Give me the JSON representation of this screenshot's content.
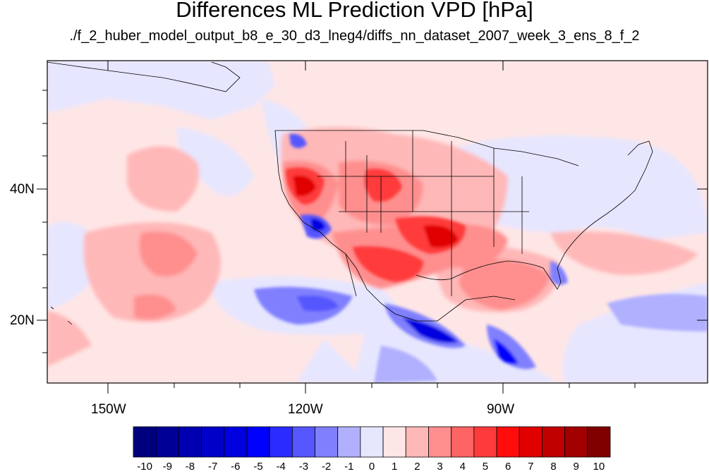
{
  "title": "Differences ML Prediction VPD [hPa]",
  "subtitle": "./f_2_huber_model_output_b8_e_30_d3_lneg4/diffs_nn_dataset_2007_week_3_ens_8_f_2",
  "lat_labels": [
    "40N",
    "20N"
  ],
  "lon_labels": [
    "150W",
    "120W",
    "90W"
  ],
  "colorbar": {
    "labels": [
      "-10",
      "-9",
      "-8",
      "-7",
      "-6",
      "-5",
      "-4",
      "-3",
      "-2",
      "-1",
      "0",
      "1",
      "2",
      "3",
      "4",
      "5",
      "6",
      "7",
      "8",
      "9",
      "10"
    ],
    "colors": [
      "#00007f",
      "#000096",
      "#0000b0",
      "#0000c8",
      "#0000e0",
      "#0000ff",
      "#2b2bff",
      "#5656ff",
      "#8080ff",
      "#b0b0ff",
      "#e6e6ff",
      "#ffe6e6",
      "#ffb8b8",
      "#ff8e8e",
      "#ff6464",
      "#ff3a3a",
      "#ff0d0d",
      "#e00000",
      "#c00000",
      "#a20000",
      "#800000"
    ]
  },
  "map_colors": {
    "background_positive": "#ffe6e6",
    "slight_negative": "#e6e6ff",
    "coast": "#000000"
  }
}
